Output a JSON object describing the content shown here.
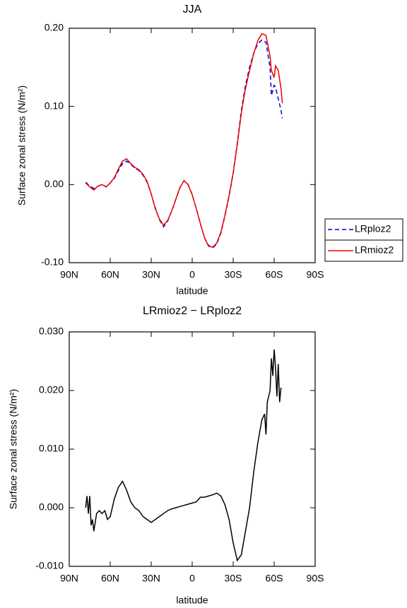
{
  "chart_data": [
    {
      "type": "line",
      "title": "JJA",
      "x_label": "latitude",
      "y_label": "Surface zonal stress (N/m²)",
      "xlim": [
        90,
        -90
      ],
      "ylim": [
        -0.1,
        0.2
      ],
      "xticks": [
        {
          "value": 90,
          "label": "90N"
        },
        {
          "value": 60,
          "label": "60N"
        },
        {
          "value": 30,
          "label": "30N"
        },
        0,
        {
          "value": -30,
          "label": "30S"
        },
        {
          "value": -60,
          "label": "60S"
        },
        {
          "value": -90,
          "label": "90S"
        }
      ],
      "yticks": [
        {
          "value": -0.1,
          "label": "-0.10"
        },
        {
          "value": 0,
          "label": "0.00"
        },
        {
          "value": 0.1,
          "label": "0.10"
        },
        {
          "value": 0.2,
          "label": "0.20"
        }
      ],
      "legend": "right",
      "x": [
        78,
        75,
        72,
        69,
        66,
        63,
        60,
        57,
        54,
        51,
        48,
        45,
        42,
        39,
        36,
        33,
        30,
        27,
        24,
        21,
        18,
        15,
        12,
        9,
        6,
        3,
        0,
        -3,
        -6,
        -9,
        -12,
        -15,
        -18,
        -21,
        -24,
        -27,
        -30,
        -33,
        -36,
        -39,
        -42,
        -45,
        -48,
        -51,
        -54,
        -57,
        -58,
        -60,
        -61,
        -63,
        -65,
        -66
      ],
      "series": [
        {
          "name": "LRploz2",
          "color": "#0000cc",
          "dash": "dashed",
          "values": [
            0.003,
            -0.002,
            -0.005,
            -0.002,
            0.0,
            -0.003,
            0.002,
            0.008,
            0.018,
            0.027,
            0.03,
            0.026,
            0.021,
            0.018,
            0.012,
            0.003,
            -0.012,
            -0.03,
            -0.045,
            -0.054,
            -0.047,
            -0.034,
            -0.019,
            -0.004,
            0.005,
            0.0,
            -0.013,
            -0.031,
            -0.05,
            -0.068,
            -0.078,
            -0.081,
            -0.076,
            -0.062,
            -0.04,
            -0.015,
            0.014,
            0.053,
            0.095,
            0.127,
            0.15,
            0.168,
            0.18,
            0.185,
            0.182,
            0.15,
            0.114,
            0.127,
            0.125,
            0.11,
            0.095,
            0.085
          ]
        },
        {
          "name": "LRmioz2",
          "color": "#ee0000",
          "dash": "solid",
          "values": [
            0.002,
            -0.003,
            -0.007,
            -0.002,
            0.0,
            -0.003,
            0.002,
            0.009,
            0.02,
            0.03,
            0.033,
            0.027,
            0.022,
            0.019,
            0.013,
            0.004,
            -0.012,
            -0.031,
            -0.044,
            -0.052,
            -0.046,
            -0.034,
            -0.019,
            -0.004,
            0.005,
            0.0,
            -0.013,
            -0.031,
            -0.05,
            -0.068,
            -0.079,
            -0.08,
            -0.075,
            -0.061,
            -0.039,
            -0.014,
            0.015,
            0.051,
            0.092,
            0.123,
            0.146,
            0.167,
            0.184,
            0.193,
            0.191,
            0.164,
            0.146,
            0.137,
            0.152,
            0.146,
            0.123,
            0.104
          ]
        }
      ]
    },
    {
      "type": "line",
      "title": "LRmioz2 − LRploz2",
      "x_label": "latitude",
      "y_label": "Surface zonal stress (N/m²)",
      "xlim": [
        90,
        -90
      ],
      "ylim": [
        -0.01,
        0.03
      ],
      "xticks": [
        {
          "value": 90,
          "label": "90N"
        },
        {
          "value": 60,
          "label": "60N"
        },
        {
          "value": 30,
          "label": "30N"
        },
        0,
        {
          "value": -30,
          "label": "30S"
        },
        {
          "value": -60,
          "label": "60S"
        },
        {
          "value": -90,
          "label": "90S"
        }
      ],
      "yticks": [
        {
          "value": -0.01,
          "label": "-0.010"
        },
        {
          "value": 0,
          "label": "0.000"
        },
        {
          "value": 0.01,
          "label": "0.010"
        },
        {
          "value": 0.02,
          "label": "0.020"
        },
        {
          "value": 0.03,
          "label": "0.030"
        }
      ],
      "color": "#000000",
      "x": [
        78,
        77,
        76,
        75,
        74,
        73,
        72,
        70,
        68,
        66,
        64,
        62,
        60,
        57,
        54,
        51,
        48,
        45,
        42,
        39,
        36,
        33,
        30,
        27,
        24,
        21,
        18,
        15,
        12,
        9,
        6,
        3,
        0,
        -3,
        -6,
        -9,
        -12,
        -15,
        -18,
        -21,
        -24,
        -27,
        -30,
        -33,
        -36,
        -39,
        -42,
        -45,
        -48,
        -51,
        -53,
        -54,
        -55,
        -57,
        -58,
        -59,
        -60,
        -61,
        -62,
        -63,
        -64,
        -65
      ],
      "values": [
        0.0,
        0.002,
        -0.001,
        0.002,
        -0.003,
        -0.002,
        -0.004,
        -0.001,
        -0.0005,
        -0.001,
        -0.0005,
        -0.002,
        -0.0015,
        0.0015,
        0.0035,
        0.0045,
        0.003,
        0.001,
        0.0,
        -0.0005,
        -0.0015,
        -0.002,
        -0.0025,
        -0.002,
        -0.0015,
        -0.001,
        -0.0005,
        -0.0002,
        0.0,
        0.0002,
        0.0004,
        0.0006,
        0.0008,
        0.001,
        0.0018,
        0.0018,
        0.002,
        0.0022,
        0.0025,
        0.002,
        0.0005,
        -0.002,
        -0.006,
        -0.009,
        -0.008,
        -0.004,
        0.0,
        0.006,
        0.011,
        0.015,
        0.016,
        0.0125,
        0.018,
        0.02,
        0.0255,
        0.0225,
        0.027,
        0.024,
        0.019,
        0.0245,
        0.018,
        0.0205
      ]
    }
  ]
}
